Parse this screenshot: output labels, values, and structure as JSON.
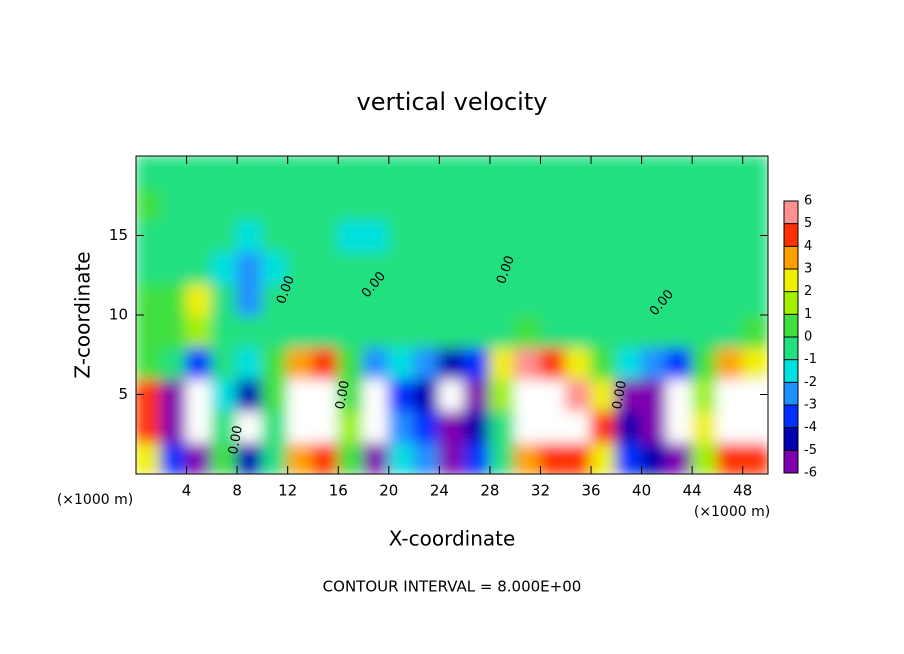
{
  "chart_data": {
    "type": "contour",
    "title": "vertical velocity",
    "xlabel": "X-coordinate",
    "ylabel": "Z-coordinate",
    "xunit": "(×1000 m)",
    "footer": "CONTOUR INTERVAL = 8.000E+00",
    "contour_label": "0.00",
    "xlim": [
      0,
      50
    ],
    "ylim": [
      0,
      20
    ],
    "xticks": [
      4,
      8,
      12,
      16,
      20,
      24,
      28,
      32,
      36,
      40,
      44,
      48
    ],
    "yticks": [
      5,
      10,
      15
    ],
    "x": [
      1,
      3,
      5,
      7,
      9,
      11,
      13,
      15,
      17,
      19,
      21,
      23,
      25,
      27,
      29,
      31,
      33,
      35,
      37,
      39,
      41,
      43,
      45,
      47,
      49
    ],
    "y": [
      1,
      3,
      5,
      7,
      9,
      11,
      13,
      15,
      17,
      19
    ],
    "values": [
      [
        3,
        -3,
        -5,
        1,
        -4,
        0,
        4,
        5,
        1,
        -5,
        -1,
        -2,
        -5,
        -3,
        0,
        4,
        5,
        5,
        3,
        -3,
        -4,
        -5,
        2,
        5,
        5
      ],
      [
        5,
        -5,
        -8,
        0,
        -8,
        0,
        8,
        8,
        2,
        -8,
        -2,
        -3,
        -6,
        -4,
        0,
        8,
        8,
        8,
        5,
        -4,
        -5,
        -8,
        3,
        8,
        8
      ],
      [
        5,
        -5,
        -8,
        -1,
        -4,
        1,
        8,
        8,
        1,
        -7,
        -3,
        -4,
        -8,
        -5,
        2,
        8,
        8,
        6,
        3,
        -5,
        -5,
        -8,
        2,
        8,
        8
      ],
      [
        1,
        0,
        -3,
        0,
        -1,
        1,
        4,
        5,
        1,
        -2,
        -1,
        -2,
        -4,
        -3,
        3,
        6,
        5,
        3,
        1,
        -1,
        -2,
        -3,
        1,
        4,
        3
      ],
      [
        1,
        1,
        2,
        0,
        0,
        0,
        0,
        0,
        0,
        0,
        0,
        0,
        0,
        0,
        0,
        1,
        0,
        0,
        0,
        0,
        0,
        0,
        0,
        0,
        1
      ],
      [
        1,
        1,
        3,
        0,
        -2,
        0,
        0,
        0,
        0,
        0,
        0,
        0,
        0,
        0,
        0,
        0,
        0,
        0,
        0,
        0,
        0,
        0,
        0,
        0,
        0
      ],
      [
        0,
        0,
        0,
        -1,
        -2,
        -1,
        0,
        0,
        0,
        0,
        0,
        0,
        0,
        0,
        0,
        0,
        0,
        0,
        0,
        0,
        0,
        0,
        0,
        0,
        0
      ],
      [
        0,
        0,
        0,
        0,
        -1,
        0,
        0,
        0,
        -1,
        -1,
        0,
        0,
        0,
        0,
        0,
        0,
        0,
        0,
        0,
        0,
        0,
        0,
        0,
        0,
        0
      ],
      [
        1,
        0,
        0,
        0,
        0,
        0,
        0,
        0,
        0,
        0,
        0,
        0,
        0,
        0,
        0,
        0,
        0,
        0,
        0,
        0,
        0,
        0,
        0,
        0,
        0
      ],
      [
        0,
        0,
        0,
        0,
        0,
        0,
        0,
        0,
        0,
        0,
        0,
        0,
        0,
        0,
        0,
        0,
        0,
        0,
        0,
        0,
        0,
        0,
        0,
        0,
        0
      ]
    ],
    "levels": [
      -6,
      -5,
      -4,
      -3,
      -2,
      -1,
      0,
      1,
      2,
      3,
      4,
      5,
      6
    ],
    "colors": [
      "#8000b0",
      "#0000b0",
      "#0030ff",
      "#2090ff",
      "#00e0e0",
      "#20e080",
      "#40e040",
      "#a0f000",
      "#f0f000",
      "#ffa000",
      "#ff3000",
      "#ff9090"
    ],
    "out_of_range_color": "#ffffff"
  }
}
